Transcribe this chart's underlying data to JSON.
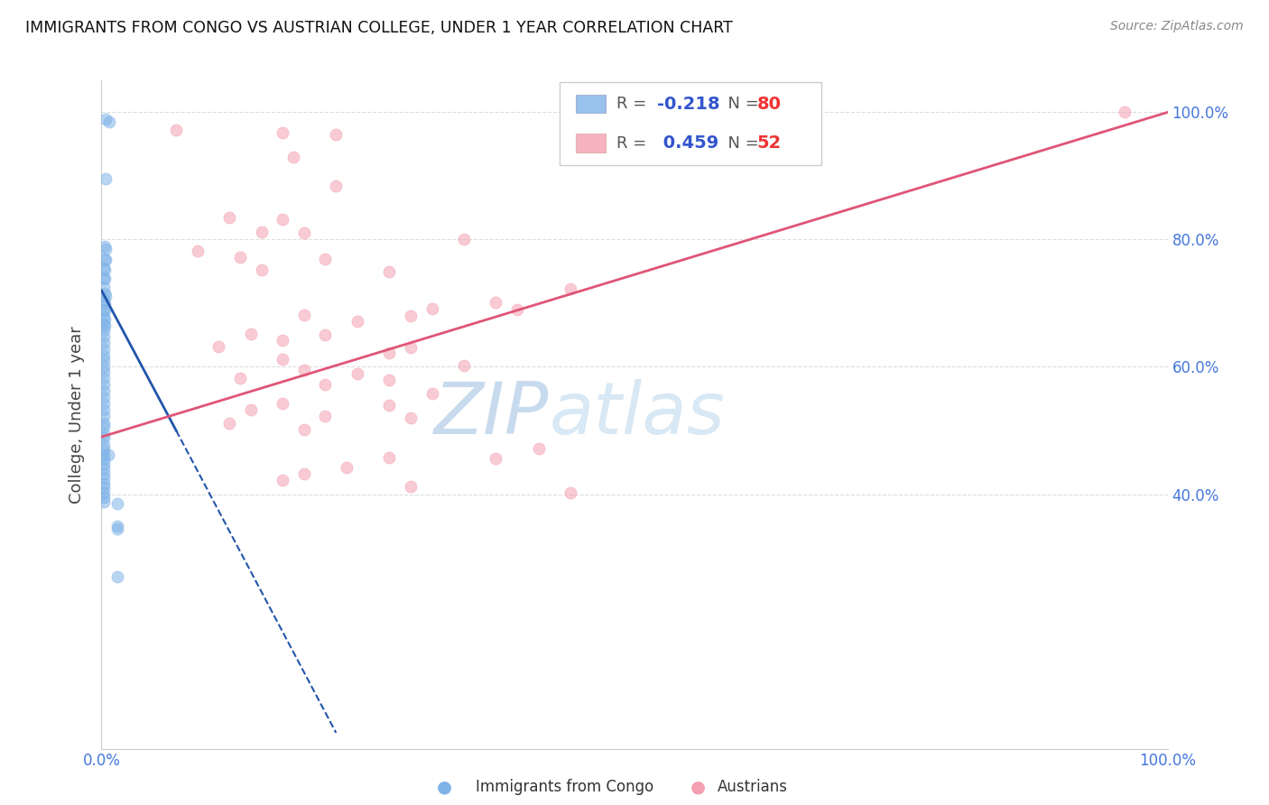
{
  "title": "IMMIGRANTS FROM CONGO VS AUSTRIAN COLLEGE, UNDER 1 YEAR CORRELATION CHART",
  "source": "Source: ZipAtlas.com",
  "ylabel": "College, Under 1 year",
  "xlim": [
    0.0,
    1.0
  ],
  "ylim": [
    0.0,
    1.05
  ],
  "color_congo": "#7EB3E8",
  "color_austria": "#F4A0B0",
  "color_r_value": "#3355CC",
  "color_n_value": "#EE3333",
  "background_color": "#FFFFFF",
  "congo_points": [
    [
      0.004,
      0.99
    ],
    [
      0.007,
      0.985
    ],
    [
      0.004,
      0.895
    ],
    [
      0.003,
      0.79
    ],
    [
      0.004,
      0.785
    ],
    [
      0.003,
      0.77
    ],
    [
      0.004,
      0.768
    ],
    [
      0.002,
      0.755
    ],
    [
      0.003,
      0.752
    ],
    [
      0.002,
      0.74
    ],
    [
      0.003,
      0.738
    ],
    [
      0.002,
      0.725
    ],
    [
      0.003,
      0.715
    ],
    [
      0.004,
      0.712
    ],
    [
      0.002,
      0.705
    ],
    [
      0.003,
      0.7
    ],
    [
      0.002,
      0.69
    ],
    [
      0.003,
      0.688
    ],
    [
      0.002,
      0.678
    ],
    [
      0.003,
      0.675
    ],
    [
      0.002,
      0.668
    ],
    [
      0.003,
      0.665
    ],
    [
      0.002,
      0.658
    ],
    [
      0.002,
      0.648
    ],
    [
      0.002,
      0.638
    ],
    [
      0.002,
      0.628
    ],
    [
      0.002,
      0.618
    ],
    [
      0.002,
      0.61
    ],
    [
      0.002,
      0.6
    ],
    [
      0.002,
      0.592
    ],
    [
      0.002,
      0.582
    ],
    [
      0.002,
      0.572
    ],
    [
      0.002,
      0.562
    ],
    [
      0.002,
      0.552
    ],
    [
      0.002,
      0.542
    ],
    [
      0.002,
      0.532
    ],
    [
      0.002,
      0.522
    ],
    [
      0.002,
      0.512
    ],
    [
      0.002,
      0.505
    ],
    [
      0.002,
      0.495
    ],
    [
      0.002,
      0.488
    ],
    [
      0.002,
      0.478
    ],
    [
      0.002,
      0.47
    ],
    [
      0.002,
      0.462
    ],
    [
      0.002,
      0.455
    ],
    [
      0.002,
      0.447
    ],
    [
      0.002,
      0.44
    ],
    [
      0.002,
      0.432
    ],
    [
      0.002,
      0.425
    ],
    [
      0.002,
      0.417
    ],
    [
      0.002,
      0.41
    ],
    [
      0.002,
      0.402
    ],
    [
      0.002,
      0.395
    ],
    [
      0.002,
      0.388
    ],
    [
      0.006,
      0.462
    ],
    [
      0.015,
      0.385
    ],
    [
      0.015,
      0.35
    ],
    [
      0.015,
      0.345
    ],
    [
      0.015,
      0.27
    ]
  ],
  "austria_points": [
    [
      0.07,
      0.972
    ],
    [
      0.17,
      0.968
    ],
    [
      0.22,
      0.965
    ],
    [
      0.18,
      0.93
    ],
    [
      0.22,
      0.885
    ],
    [
      0.12,
      0.835
    ],
    [
      0.17,
      0.832
    ],
    [
      0.15,
      0.812
    ],
    [
      0.19,
      0.81
    ],
    [
      0.34,
      0.8
    ],
    [
      0.09,
      0.782
    ],
    [
      0.13,
      0.772
    ],
    [
      0.21,
      0.77
    ],
    [
      0.15,
      0.752
    ],
    [
      0.27,
      0.75
    ],
    [
      0.44,
      0.722
    ],
    [
      0.37,
      0.702
    ],
    [
      0.31,
      0.692
    ],
    [
      0.39,
      0.69
    ],
    [
      0.19,
      0.682
    ],
    [
      0.29,
      0.68
    ],
    [
      0.24,
      0.672
    ],
    [
      0.14,
      0.652
    ],
    [
      0.21,
      0.65
    ],
    [
      0.17,
      0.642
    ],
    [
      0.11,
      0.632
    ],
    [
      0.29,
      0.63
    ],
    [
      0.27,
      0.622
    ],
    [
      0.17,
      0.612
    ],
    [
      0.34,
      0.602
    ],
    [
      0.19,
      0.595
    ],
    [
      0.24,
      0.59
    ],
    [
      0.13,
      0.582
    ],
    [
      0.27,
      0.58
    ],
    [
      0.21,
      0.572
    ],
    [
      0.31,
      0.558
    ],
    [
      0.17,
      0.542
    ],
    [
      0.27,
      0.54
    ],
    [
      0.14,
      0.532
    ],
    [
      0.21,
      0.522
    ],
    [
      0.29,
      0.52
    ],
    [
      0.12,
      0.512
    ],
    [
      0.19,
      0.502
    ],
    [
      0.41,
      0.472
    ],
    [
      0.27,
      0.458
    ],
    [
      0.37,
      0.456
    ],
    [
      0.23,
      0.442
    ],
    [
      0.19,
      0.432
    ],
    [
      0.17,
      0.422
    ],
    [
      0.29,
      0.412
    ],
    [
      0.44,
      0.402
    ],
    [
      0.96,
      1.0
    ]
  ],
  "congo_line_solid": {
    "x0": 0.0,
    "y0": 0.72,
    "x1": 0.07,
    "y1": 0.5
  },
  "congo_line_dashed": {
    "x0": 0.07,
    "y0": 0.5,
    "x1": 0.22,
    "y1": 0.025
  },
  "austria_line": {
    "x0": 0.0,
    "y0": 0.49,
    "x1": 1.0,
    "y1": 1.0
  }
}
